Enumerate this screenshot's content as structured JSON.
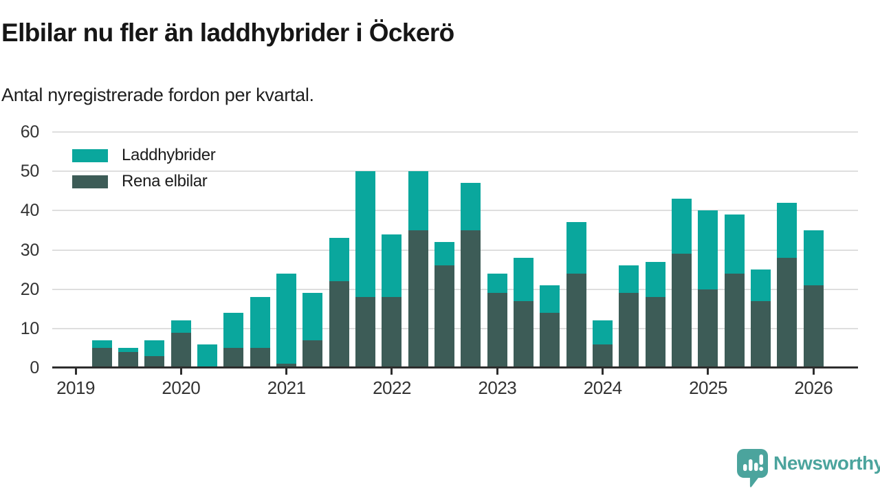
{
  "title": "Elbilar nu fler än laddhybrider i Öckerö",
  "subtitle": "Antal nyregistrerade fordon per kvartal.",
  "branding": {
    "logo_text": "Newsworthy",
    "logo_color": "#4BA49D",
    "logo_icon": "speech-bubble-with-bar-chart-and-exclamation"
  },
  "colors": {
    "laddhybrider": "#0AA79D",
    "rena_elbilar": "#3D5C57",
    "title_text": "#161616",
    "axis_text": "#333333",
    "gridline": "#dedede",
    "axis_line": "#2d2d2d",
    "background": "#ffffff"
  },
  "chart_data": {
    "type": "bar",
    "stacked": true,
    "title": "Elbilar nu fler än laddhybrider i Öckerö",
    "subtitle": "Antal nyregistrerade fordon per kvartal.",
    "xlabel": "",
    "ylabel": "",
    "ylim": [
      0,
      60
    ],
    "yticks": [
      0,
      10,
      20,
      30,
      40,
      50,
      60
    ],
    "grid": "horizontal",
    "legend_position": "top-left",
    "x_axis_start": "2019 Q1",
    "x_tick_labels": [
      "2019",
      "2020",
      "2021",
      "2022",
      "2023",
      "2024",
      "2025",
      "2026"
    ],
    "categories": [
      "2019 Q2",
      "2019 Q3",
      "2019 Q4",
      "2020 Q1",
      "2020 Q2",
      "2020 Q3",
      "2020 Q4",
      "2021 Q1",
      "2021 Q2",
      "2021 Q3",
      "2021 Q4",
      "2022 Q1",
      "2022 Q2",
      "2022 Q3",
      "2022 Q4",
      "2023 Q1",
      "2023 Q2",
      "2023 Q3",
      "2023 Q4",
      "2024 Q1",
      "2024 Q2",
      "2024 Q3",
      "2024 Q4",
      "2025 Q1",
      "2025 Q2",
      "2025 Q3",
      "2025 Q4",
      "2026 Q1"
    ],
    "series": [
      {
        "name": "Laddhybrider",
        "color": "#0AA79D",
        "stack_position": "top",
        "values": [
          2,
          1,
          4,
          3,
          6,
          9,
          13,
          23,
          12,
          11,
          32,
          16,
          15,
          6,
          12,
          5,
          11,
          7,
          13,
          6,
          7,
          9,
          14,
          20,
          15,
          8,
          14,
          14
        ]
      },
      {
        "name": "Rena elbilar",
        "color": "#3D5C57",
        "stack_position": "bottom",
        "values": [
          5,
          4,
          3,
          9,
          0,
          5,
          5,
          1,
          7,
          22,
          18,
          18,
          35,
          26,
          35,
          19,
          17,
          14,
          24,
          6,
          19,
          18,
          29,
          20,
          24,
          17,
          28,
          21
        ]
      }
    ],
    "totals": [
      7,
      5,
      7,
      12,
      6,
      14,
      18,
      24,
      19,
      33,
      50,
      34,
      50,
      32,
      47,
      24,
      28,
      21,
      37,
      12,
      26,
      27,
      43,
      40,
      39,
      25,
      42,
      35
    ]
  }
}
